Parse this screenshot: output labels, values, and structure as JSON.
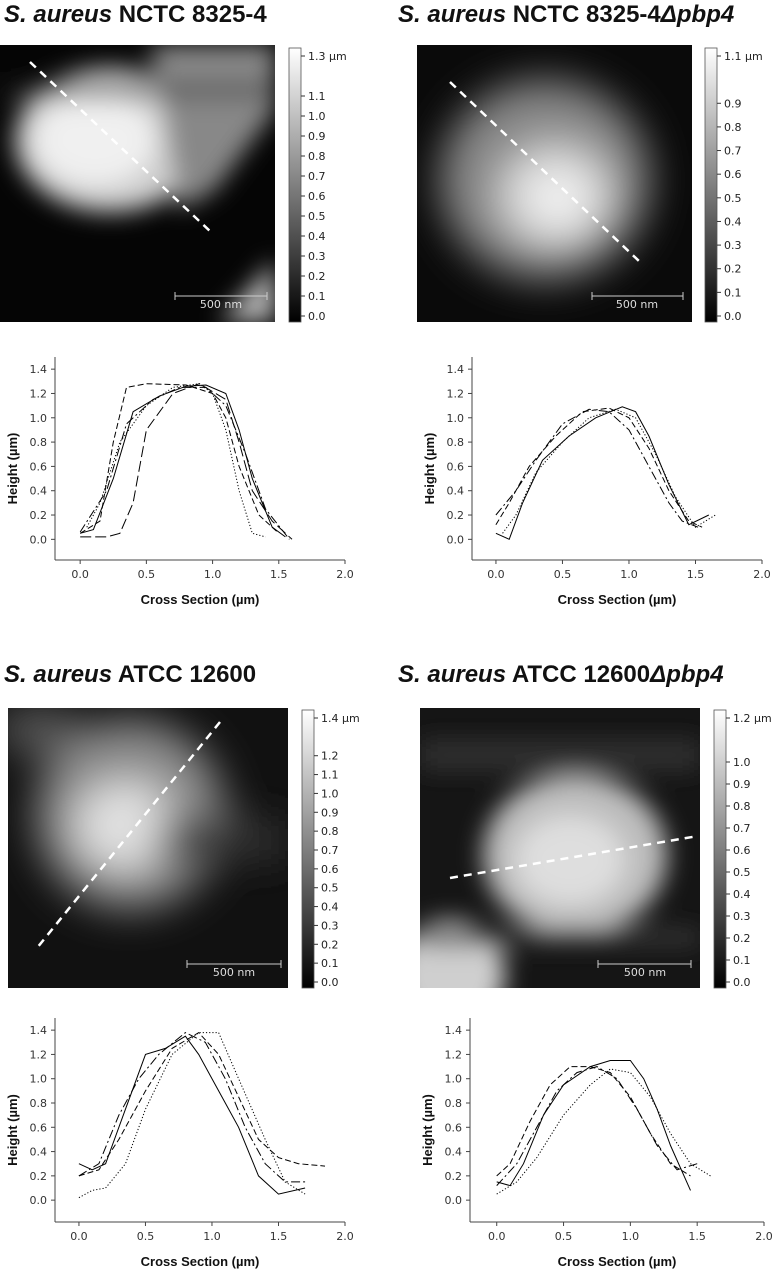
{
  "chart_data": [
    {
      "type": "line",
      "title_parts": [
        {
          "text": "S. aureus",
          "italic": true
        },
        {
          "text": " NCTC 8325-4",
          "italic": false
        }
      ],
      "colorbar": {
        "clim": [
          0,
          1.3
        ],
        "ticks": [
          {
            "value": 1.3,
            "label": "1.3 µm"
          },
          1.1,
          {
            "value": 1.0,
            "label": "1.0"
          },
          0.9,
          0.8,
          0.7,
          0.6,
          0.5,
          0.4,
          0.3,
          0.2,
          0.1,
          {
            "value": 0.0,
            "label": "0.0"
          }
        ]
      },
      "scale_bar_label": "500 nm",
      "xlabel": "Cross Section (µm)",
      "ylabel": "Height (µm)",
      "xlim": [
        -0.19,
        2.0
      ],
      "ylim": [
        -0.17,
        1.5
      ],
      "xticks": [
        {
          "value": 0.0,
          "label": "0.0"
        },
        0.5,
        {
          "value": 1.0,
          "label": "1.0"
        },
        1.5,
        {
          "value": 2.0,
          "label": "2.0"
        }
      ],
      "yticks": [
        {
          "value": 0.0,
          "label": "0.0"
        },
        0.2,
        0.4,
        0.6,
        0.8,
        {
          "value": 1.0,
          "label": "1.0"
        },
        1.2,
        1.4
      ],
      "series": [
        {
          "style": "solid",
          "color": "#000",
          "x": [
            0.0,
            0.1,
            0.25,
            0.4,
            0.6,
            0.8,
            0.95,
            1.1,
            1.2,
            1.3,
            1.45,
            1.55
          ],
          "values": [
            0.05,
            0.08,
            0.5,
            1.05,
            1.18,
            1.26,
            1.27,
            1.2,
            0.9,
            0.5,
            0.1,
            0.02
          ]
        },
        {
          "style": "dashed",
          "color": "#000",
          "x": [
            0.0,
            0.15,
            0.25,
            0.35,
            0.5,
            0.8,
            1.0,
            1.1,
            1.2,
            1.35,
            1.5
          ],
          "values": [
            0.05,
            0.15,
            0.8,
            1.25,
            1.28,
            1.27,
            1.2,
            1.0,
            0.6,
            0.2,
            0.05
          ]
        },
        {
          "style": "longdash",
          "color": "#000",
          "x": [
            0.0,
            0.2,
            0.3,
            0.4,
            0.5,
            0.7,
            0.9,
            1.1,
            1.2,
            1.3,
            1.45,
            1.6
          ],
          "values": [
            0.02,
            0.02,
            0.05,
            0.3,
            0.9,
            1.2,
            1.28,
            1.15,
            0.8,
            0.4,
            0.15,
            0.0
          ]
        },
        {
          "style": "dotted",
          "color": "#000",
          "x": [
            0.05,
            0.15,
            0.3,
            0.5,
            0.7,
            0.9,
            1.0,
            1.1,
            1.2,
            1.3,
            1.4
          ],
          "values": [
            0.1,
            0.3,
            0.8,
            1.1,
            1.25,
            1.28,
            1.2,
            0.9,
            0.4,
            0.05,
            0.02
          ]
        },
        {
          "style": "dashdot",
          "color": "#000",
          "x": [
            0.0,
            0.2,
            0.35,
            0.55,
            0.75,
            0.95,
            1.1,
            1.25,
            1.4,
            1.58
          ],
          "values": [
            0.06,
            0.4,
            0.95,
            1.15,
            1.25,
            1.25,
            1.1,
            0.7,
            0.25,
            0.0
          ]
        }
      ]
    },
    {
      "type": "line",
      "title_parts": [
        {
          "text": "S. aureus",
          "italic": true
        },
        {
          "text": " NCTC 8325-4",
          "italic": false
        },
        {
          "text": "Δpbp4",
          "italic": true
        }
      ],
      "colorbar": {
        "clim": [
          0,
          1.1
        ],
        "ticks": [
          {
            "value": 1.1,
            "label": "1.1 µm"
          },
          0.9,
          0.8,
          0.7,
          0.6,
          0.5,
          0.4,
          0.3,
          0.2,
          0.1,
          {
            "value": 0.0,
            "label": "0.0"
          }
        ]
      },
      "scale_bar_label": "500 nm",
      "xlabel": "Cross Section (µm)",
      "ylabel": "Height (µm)",
      "xlim": [
        -0.18,
        2.0
      ],
      "ylim": [
        -0.17,
        1.5
      ],
      "xticks": [
        {
          "value": 0.0,
          "label": "0.0"
        },
        0.5,
        {
          "value": 1.0,
          "label": "1.0"
        },
        1.5,
        {
          "value": 2.0,
          "label": "2.0"
        }
      ],
      "yticks": [
        {
          "value": 0.0,
          "label": "0.0"
        },
        0.2,
        0.4,
        0.6,
        0.8,
        {
          "value": 1.0,
          "label": "1.0"
        },
        1.2,
        1.4
      ],
      "series": [
        {
          "style": "solid",
          "color": "#000",
          "x": [
            0.0,
            0.1,
            0.2,
            0.35,
            0.55,
            0.75,
            0.95,
            1.05,
            1.15,
            1.3,
            1.45,
            1.6
          ],
          "values": [
            0.05,
            0.0,
            0.3,
            0.65,
            0.85,
            1.0,
            1.09,
            1.05,
            0.85,
            0.45,
            0.12,
            0.2
          ]
        },
        {
          "style": "dashed",
          "color": "#000",
          "x": [
            0.0,
            0.1,
            0.25,
            0.45,
            0.65,
            0.85,
            1.0,
            1.15,
            1.3,
            1.45,
            1.55
          ],
          "values": [
            0.12,
            0.3,
            0.6,
            0.85,
            1.05,
            1.08,
            1.0,
            0.75,
            0.4,
            0.15,
            0.1
          ]
        },
        {
          "style": "dotted",
          "color": "#000",
          "x": [
            0.05,
            0.15,
            0.3,
            0.5,
            0.7,
            0.9,
            1.05,
            1.2,
            1.35,
            1.5,
            1.65
          ],
          "values": [
            0.05,
            0.2,
            0.55,
            0.8,
            1.0,
            1.07,
            1.0,
            0.7,
            0.35,
            0.1,
            0.2
          ]
        },
        {
          "style": "dashdot",
          "color": "#000",
          "x": [
            0.0,
            0.15,
            0.3,
            0.5,
            0.7,
            0.85,
            1.0,
            1.15,
            1.3,
            1.4,
            1.52
          ],
          "values": [
            0.2,
            0.4,
            0.65,
            0.95,
            1.07,
            1.05,
            0.9,
            0.6,
            0.3,
            0.15,
            0.1
          ]
        }
      ]
    },
    {
      "type": "line",
      "title_parts": [
        {
          "text": "S. aureus",
          "italic": true
        },
        {
          "text": " ATCC 12600",
          "italic": false
        }
      ],
      "colorbar": {
        "clim": [
          0,
          1.4
        ],
        "ticks": [
          {
            "value": 1.4,
            "label": "1.4 µm"
          },
          1.2,
          1.1,
          {
            "value": 1.0,
            "label": "1.0"
          },
          0.9,
          0.8,
          0.7,
          0.6,
          0.5,
          0.4,
          0.3,
          0.2,
          0.1,
          {
            "value": 0.0,
            "label": "0.0"
          }
        ]
      },
      "scale_bar_label": "500 nm",
      "xlabel": "Cross Section (µm)",
      "ylabel": "Height (µm)",
      "xlim": [
        -0.18,
        2.0
      ],
      "ylim": [
        -0.18,
        1.5
      ],
      "xticks": [
        {
          "value": 0.0,
          "label": "0.0"
        },
        0.5,
        {
          "value": 1.0,
          "label": "1.0"
        },
        1.5,
        {
          "value": 2.0,
          "label": "2.0"
        }
      ],
      "yticks": [
        {
          "value": 0.0,
          "label": "0.0"
        },
        0.2,
        0.4,
        0.6,
        0.8,
        {
          "value": 1.0,
          "label": "1.0"
        },
        1.2,
        1.4
      ],
      "series": [
        {
          "style": "solid",
          "color": "#000",
          "x": [
            0.0,
            0.1,
            0.2,
            0.35,
            0.5,
            0.65,
            0.8,
            0.9,
            1.0,
            1.1,
            1.2,
            1.35,
            1.5,
            1.7
          ],
          "values": [
            0.3,
            0.25,
            0.3,
            0.75,
            1.2,
            1.25,
            1.35,
            1.2,
            1.0,
            0.8,
            0.6,
            0.2,
            0.05,
            0.1
          ]
        },
        {
          "style": "dashed",
          "color": "#000",
          "x": [
            0.0,
            0.15,
            0.3,
            0.5,
            0.7,
            0.9,
            1.05,
            1.2,
            1.35,
            1.5,
            1.65,
            1.85
          ],
          "values": [
            0.2,
            0.25,
            0.5,
            0.9,
            1.25,
            1.38,
            1.2,
            0.85,
            0.5,
            0.35,
            0.3,
            0.28
          ]
        },
        {
          "style": "dotted",
          "color": "#000",
          "x": [
            0.0,
            0.1,
            0.2,
            0.35,
            0.5,
            0.7,
            0.9,
            1.05,
            1.2,
            1.4,
            1.55,
            1.7
          ],
          "values": [
            0.02,
            0.08,
            0.1,
            0.3,
            0.75,
            1.2,
            1.38,
            1.38,
            1.0,
            0.5,
            0.15,
            0.05
          ]
        },
        {
          "style": "dashdot",
          "color": "#000",
          "x": [
            0.0,
            0.15,
            0.3,
            0.45,
            0.6,
            0.8,
            0.95,
            1.1,
            1.25,
            1.4,
            1.55,
            1.7
          ],
          "values": [
            0.2,
            0.3,
            0.7,
            1.0,
            1.2,
            1.38,
            1.3,
            1.0,
            0.6,
            0.3,
            0.15,
            0.15
          ]
        }
      ]
    },
    {
      "type": "line",
      "title_parts": [
        {
          "text": "S. aureus",
          "italic": true
        },
        {
          "text": " ATCC 12600",
          "italic": false
        },
        {
          "text": "Δpbp4",
          "italic": true
        }
      ],
      "colorbar": {
        "clim": [
          0,
          1.2
        ],
        "ticks": [
          {
            "value": 1.2,
            "label": "1.2 µm"
          },
          {
            "value": 1.0,
            "label": "1.0"
          },
          0.9,
          0.8,
          0.7,
          0.6,
          0.5,
          0.4,
          0.3,
          0.2,
          0.1,
          {
            "value": 0.0,
            "label": "0.0"
          }
        ]
      },
      "scale_bar_label": "500 nm",
      "xlabel": "Cross Section (µm)",
      "ylabel": "Height (µm)",
      "xlim": [
        -0.2,
        2.0
      ],
      "ylim": [
        -0.18,
        1.5
      ],
      "xticks": [
        {
          "value": 0.0,
          "label": "0.0"
        },
        0.5,
        {
          "value": 1.0,
          "label": "1.0"
        },
        1.5,
        {
          "value": 2.0,
          "label": "2.0"
        }
      ],
      "yticks": [
        {
          "value": 0.0,
          "label": "0.0"
        },
        0.2,
        0.4,
        0.6,
        0.8,
        {
          "value": 1.0,
          "label": "1.0"
        },
        1.2,
        1.4
      ],
      "series": [
        {
          "style": "solid",
          "color": "#000",
          "x": [
            0.0,
            0.1,
            0.2,
            0.35,
            0.5,
            0.7,
            0.85,
            1.0,
            1.1,
            1.2,
            1.3,
            1.45
          ],
          "values": [
            0.15,
            0.12,
            0.3,
            0.7,
            0.95,
            1.1,
            1.15,
            1.15,
            1.0,
            0.75,
            0.45,
            0.08
          ]
        },
        {
          "style": "dashed",
          "color": "#000",
          "x": [
            0.0,
            0.1,
            0.25,
            0.4,
            0.55,
            0.7,
            0.85,
            1.0,
            1.15,
            1.3,
            1.45
          ],
          "values": [
            0.2,
            0.3,
            0.65,
            0.95,
            1.1,
            1.1,
            1.05,
            0.85,
            0.55,
            0.3,
            0.2
          ]
        },
        {
          "style": "dotted",
          "color": "#000",
          "x": [
            0.0,
            0.15,
            0.3,
            0.5,
            0.7,
            0.85,
            1.0,
            1.15,
            1.3,
            1.45,
            1.6
          ],
          "values": [
            0.05,
            0.15,
            0.35,
            0.7,
            0.95,
            1.08,
            1.05,
            0.85,
            0.55,
            0.3,
            0.2
          ]
        },
        {
          "style": "dashdot",
          "color": "#000",
          "x": [
            0.0,
            0.15,
            0.3,
            0.45,
            0.6,
            0.75,
            0.9,
            1.05,
            1.2,
            1.35,
            1.5
          ],
          "values": [
            0.12,
            0.3,
            0.6,
            0.9,
            1.05,
            1.1,
            1.0,
            0.75,
            0.45,
            0.25,
            0.3
          ]
        }
      ]
    }
  ]
}
